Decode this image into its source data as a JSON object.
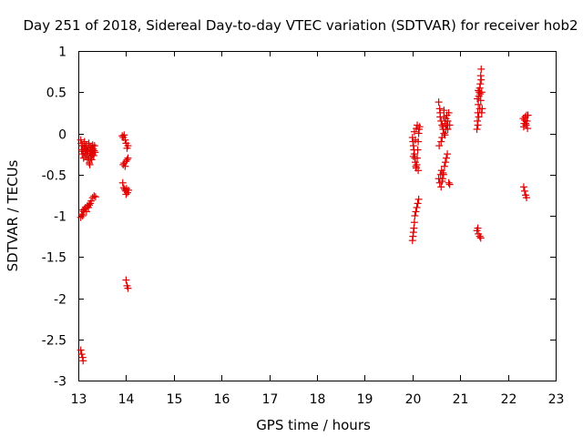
{
  "chart_data": {
    "type": "scatter",
    "title": "Day 251 of 2018, Sidereal Day-to-day VTEC variation (SDTVAR) for receiver hob2",
    "xlabel": "GPS time / hours",
    "ylabel": "SDTVAR / TECUs",
    "xlim": [
      13,
      23
    ],
    "ylim": [
      -3,
      1
    ],
    "xticks": [
      13,
      14,
      15,
      16,
      17,
      18,
      19,
      20,
      21,
      22,
      23
    ],
    "yticks": [
      {
        "value": 1,
        "label": "1"
      },
      {
        "value": 0.5,
        "label": "0.5"
      },
      {
        "value": 0,
        "label": "0"
      },
      {
        "value": -0.5,
        "label": "-0.5"
      },
      {
        "value": -1,
        "label": "-1"
      },
      {
        "value": -1.5,
        "label": "-1.5"
      },
      {
        "value": -2,
        "label": "-2"
      },
      {
        "value": -2.5,
        "label": "-2.5"
      },
      {
        "value": -3,
        "label": "-3"
      }
    ],
    "marker": "+",
    "color": "#e00000",
    "series": [
      {
        "name": "SDTVAR",
        "points": [
          [
            13.05,
            -0.08
          ],
          [
            13.06,
            -0.12
          ],
          [
            13.07,
            -0.2
          ],
          [
            13.08,
            -0.25
          ],
          [
            13.09,
            -0.15
          ],
          [
            13.1,
            -0.22
          ],
          [
            13.11,
            -0.3
          ],
          [
            13.12,
            -0.18
          ],
          [
            13.13,
            -0.1
          ],
          [
            13.14,
            -0.24
          ],
          [
            13.15,
            -0.28
          ],
          [
            13.16,
            -0.2
          ],
          [
            13.17,
            -0.14
          ],
          [
            13.18,
            -0.26
          ],
          [
            13.19,
            -0.32
          ],
          [
            13.2,
            -0.22
          ],
          [
            13.21,
            -0.18
          ],
          [
            13.22,
            -0.3
          ],
          [
            13.23,
            -0.36
          ],
          [
            13.24,
            -0.24
          ],
          [
            13.25,
            -0.16
          ],
          [
            13.26,
            -0.2
          ],
          [
            13.27,
            -0.28
          ],
          [
            13.28,
            -0.22
          ],
          [
            13.29,
            -0.17
          ],
          [
            13.3,
            -0.25
          ],
          [
            13.31,
            -0.19
          ],
          [
            13.32,
            -0.27
          ],
          [
            13.33,
            -0.21
          ],
          [
            13.34,
            -0.15
          ],
          [
            13.35,
            -0.23
          ],
          [
            13.22,
            -0.12
          ],
          [
            13.24,
            -0.38
          ],
          [
            13.26,
            -0.3
          ],
          [
            13.3,
            -0.14
          ],
          [
            13.18,
            -0.2
          ],
          [
            13.14,
            -0.16
          ],
          [
            13.28,
            -0.32
          ],
          [
            13.05,
            -1.02
          ],
          [
            13.07,
            -0.98
          ],
          [
            13.09,
            -1.0
          ],
          [
            13.11,
            -0.95
          ],
          [
            13.13,
            -0.92
          ],
          [
            13.15,
            -0.9
          ],
          [
            13.17,
            -0.95
          ],
          [
            13.19,
            -0.88
          ],
          [
            13.21,
            -0.9
          ],
          [
            13.23,
            -0.87
          ],
          [
            13.25,
            -0.85
          ],
          [
            13.27,
            -0.82
          ],
          [
            13.3,
            -0.78
          ],
          [
            13.33,
            -0.76
          ],
          [
            13.36,
            -0.77
          ],
          [
            13.1,
            -0.93
          ],
          [
            13.05,
            -2.63
          ],
          [
            13.07,
            -2.68
          ],
          [
            13.09,
            -2.72
          ],
          [
            13.1,
            -2.76
          ],
          [
            13.92,
            -0.03
          ],
          [
            13.94,
            -0.05
          ],
          [
            13.96,
            -0.02
          ],
          [
            13.98,
            -0.08
          ],
          [
            14.0,
            -0.12
          ],
          [
            14.02,
            -0.18
          ],
          [
            14.04,
            -0.15
          ],
          [
            13.94,
            -0.38
          ],
          [
            13.96,
            -0.36
          ],
          [
            13.98,
            -0.4
          ],
          [
            14.0,
            -0.34
          ],
          [
            14.02,
            -0.32
          ],
          [
            14.04,
            -0.3
          ],
          [
            13.93,
            -0.6
          ],
          [
            13.95,
            -0.66
          ],
          [
            13.97,
            -0.68
          ],
          [
            13.99,
            -0.7
          ],
          [
            14.01,
            -0.67
          ],
          [
            14.03,
            -0.72
          ],
          [
            14.05,
            -0.69
          ],
          [
            14.0,
            -0.74
          ],
          [
            14.0,
            -1.78
          ],
          [
            14.02,
            -1.85
          ],
          [
            14.04,
            -1.88
          ],
          [
            20.0,
            -0.05
          ],
          [
            20.01,
            -0.1
          ],
          [
            20.02,
            -0.15
          ],
          [
            20.03,
            -0.2
          ],
          [
            20.04,
            -0.25
          ],
          [
            20.05,
            -0.3
          ],
          [
            20.06,
            -0.35
          ],
          [
            20.07,
            -0.4
          ],
          [
            20.08,
            -0.42
          ],
          [
            20.09,
            -0.38
          ],
          [
            20.1,
            -0.3
          ],
          [
            20.11,
            -0.2
          ],
          [
            20.12,
            -0.1
          ],
          [
            20.13,
            0.0
          ],
          [
            20.14,
            0.05
          ],
          [
            20.15,
            0.08
          ],
          [
            20.04,
            0.02
          ],
          [
            20.06,
            -0.08
          ],
          [
            20.08,
            0.06
          ],
          [
            20.1,
            0.1
          ],
          [
            20.12,
            -0.45
          ],
          [
            20.02,
            -0.28
          ],
          [
            20.0,
            -1.3
          ],
          [
            20.01,
            -1.25
          ],
          [
            20.02,
            -1.2
          ],
          [
            20.03,
            -1.15
          ],
          [
            20.04,
            -1.08
          ],
          [
            20.05,
            -1.0
          ],
          [
            20.07,
            -0.95
          ],
          [
            20.09,
            -0.9
          ],
          [
            20.11,
            -0.85
          ],
          [
            20.13,
            -0.8
          ],
          [
            20.55,
            0.38
          ],
          [
            20.57,
            0.3
          ],
          [
            20.58,
            0.2
          ],
          [
            20.6,
            0.15
          ],
          [
            20.62,
            0.1
          ],
          [
            20.64,
            0.05
          ],
          [
            20.66,
            0.0
          ],
          [
            20.68,
            0.12
          ],
          [
            20.7,
            0.18
          ],
          [
            20.72,
            0.22
          ],
          [
            20.74,
            0.15
          ],
          [
            20.76,
            0.25
          ],
          [
            20.78,
            0.1
          ],
          [
            20.6,
            -0.1
          ],
          [
            20.62,
            -0.05
          ],
          [
            20.64,
            0.08
          ],
          [
            20.66,
            0.2
          ],
          [
            20.68,
            -0.02
          ],
          [
            20.7,
            0.05
          ],
          [
            20.72,
            0.1
          ],
          [
            20.56,
            -0.15
          ],
          [
            20.74,
            0.05
          ],
          [
            20.58,
            0.25
          ],
          [
            20.66,
            0.28
          ],
          [
            20.55,
            -0.55
          ],
          [
            20.57,
            -0.6
          ],
          [
            20.59,
            -0.5
          ],
          [
            20.61,
            -0.45
          ],
          [
            20.63,
            -0.55
          ],
          [
            20.65,
            -0.5
          ],
          [
            20.67,
            -0.4
          ],
          [
            20.69,
            -0.35
          ],
          [
            20.71,
            -0.3
          ],
          [
            20.73,
            -0.25
          ],
          [
            20.6,
            -0.65
          ],
          [
            20.62,
            -0.58
          ],
          [
            20.64,
            -0.48
          ],
          [
            20.76,
            -0.6
          ],
          [
            20.78,
            -0.62
          ],
          [
            21.35,
            0.05
          ],
          [
            21.36,
            0.15
          ],
          [
            21.37,
            0.25
          ],
          [
            21.38,
            0.35
          ],
          [
            21.39,
            0.45
          ],
          [
            21.4,
            0.5
          ],
          [
            21.41,
            0.55
          ],
          [
            21.42,
            0.6
          ],
          [
            21.43,
            0.7
          ],
          [
            21.44,
            0.78
          ],
          [
            21.45,
            0.5
          ],
          [
            21.46,
            0.3
          ],
          [
            21.37,
            0.1
          ],
          [
            21.39,
            0.2
          ],
          [
            21.41,
            0.3
          ],
          [
            21.43,
            0.4
          ],
          [
            21.45,
            0.25
          ],
          [
            21.36,
            0.42
          ],
          [
            21.44,
            0.65
          ],
          [
            21.38,
            0.52
          ],
          [
            21.42,
            0.48
          ],
          [
            21.35,
            -1.18
          ],
          [
            21.38,
            -1.22
          ],
          [
            21.41,
            -1.25
          ],
          [
            21.43,
            -1.27
          ],
          [
            21.37,
            -1.15
          ],
          [
            22.32,
            0.18
          ],
          [
            22.34,
            0.12
          ],
          [
            22.36,
            0.2
          ],
          [
            22.38,
            0.1
          ],
          [
            22.4,
            0.15
          ],
          [
            22.42,
            0.22
          ],
          [
            22.33,
            0.08
          ],
          [
            22.35,
            0.16
          ],
          [
            22.37,
            0.12
          ],
          [
            22.39,
            0.22
          ],
          [
            22.41,
            0.06
          ],
          [
            22.33,
            -0.65
          ],
          [
            22.35,
            -0.7
          ],
          [
            22.37,
            -0.75
          ],
          [
            22.39,
            -0.78
          ]
        ]
      }
    ]
  }
}
